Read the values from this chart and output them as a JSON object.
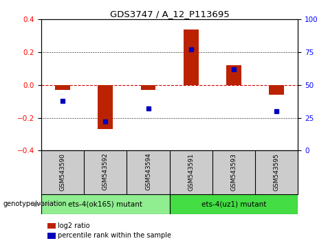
{
  "title": "GDS3747 / A_12_P113695",
  "samples": [
    "GSM543590",
    "GSM543592",
    "GSM543594",
    "GSM543591",
    "GSM543593",
    "GSM543595"
  ],
  "log2_ratio": [
    -0.03,
    -0.27,
    -0.03,
    0.34,
    0.12,
    -0.06
  ],
  "percentile_rank": [
    38,
    22,
    32,
    77,
    62,
    30
  ],
  "groups": [
    {
      "label": "ets-4(ok165) mutant",
      "samples": [
        0,
        1,
        2
      ],
      "color": "#90EE90"
    },
    {
      "label": "ets-4(uz1) mutant",
      "samples": [
        3,
        4,
        5
      ],
      "color": "#44DD44"
    }
  ],
  "ylim_left": [
    -0.4,
    0.4
  ],
  "ylim_right": [
    0,
    100
  ],
  "yticks_left": [
    -0.4,
    -0.2,
    0.0,
    0.2,
    0.4
  ],
  "yticks_right": [
    0,
    25,
    50,
    75,
    100
  ],
  "bar_color_red": "#BB2200",
  "dot_color_blue": "#0000BB",
  "hline_color": "#CC0000",
  "grid_color": "#000000",
  "bg_color": "#FFFFFF",
  "sample_bg": "#CCCCCC",
  "bar_width": 0.35,
  "genotype_label": "genotype/variation",
  "legend1": "log2 ratio",
  "legend2": "percentile rank within the sample"
}
